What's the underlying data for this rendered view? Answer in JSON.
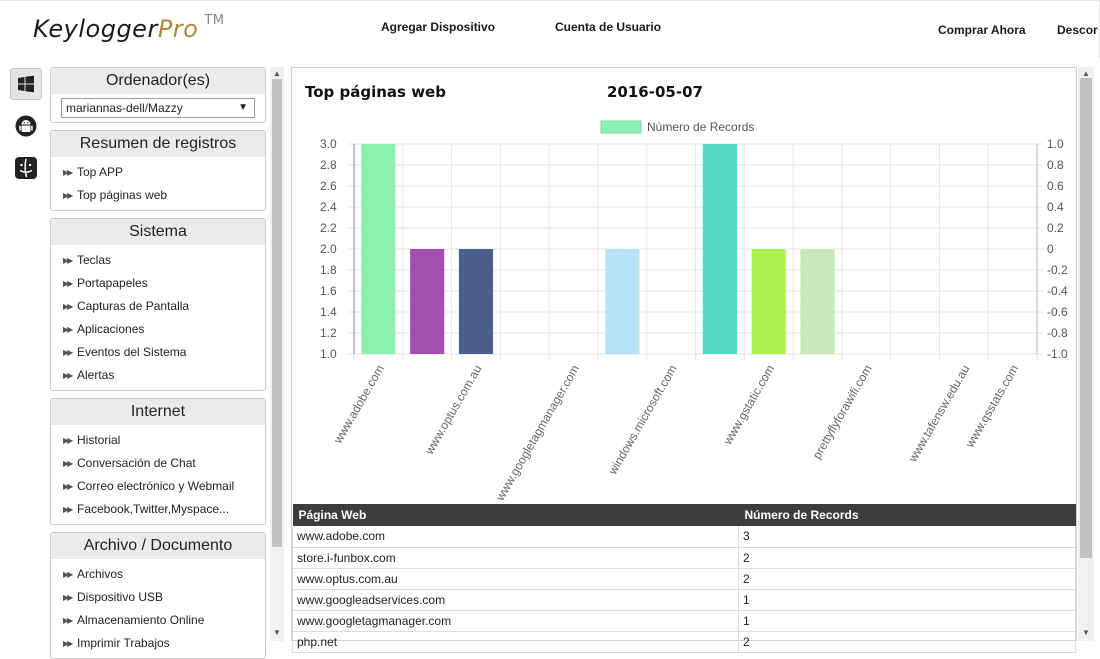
{
  "header": {
    "logo_main": "Keylogger",
    "logo_accent": "Pro",
    "logo_tm": "TM",
    "nav": [
      "Agregar Dispositivo",
      "Cuenta de Usuario",
      "Comprar Ahora",
      "Descor"
    ]
  },
  "rail": [
    "windows-icon",
    "android-icon",
    "mac-icon"
  ],
  "sidebar": {
    "computers_title": "Ordenador(es)",
    "computer_selected": "mariannas-dell/Mazzy",
    "sections": [
      {
        "title": "Resumen de registros",
        "items": [
          "Top APP",
          "Top páginas web"
        ]
      },
      {
        "title": "Sistema",
        "items": [
          "Teclas",
          "Portapapeles",
          "Capturas de Pantalla",
          "Aplicaciones",
          "Eventos del Sistema",
          "Alertas"
        ]
      },
      {
        "title": "Internet",
        "items": [
          "Historial",
          "Conversación de Chat",
          "Correo electrónico y Webmail",
          "Facebook,Twitter,Myspace..."
        ]
      },
      {
        "title": "Archivo / Documento",
        "items": [
          "Archivos",
          "Dispositivo USB",
          "Almacenamiento Online",
          "Imprimir Trabajos"
        ]
      }
    ]
  },
  "main": {
    "title": "Top páginas web",
    "date": "2016-05-07",
    "table": {
      "headers": [
        "Página Web",
        "Número de Records"
      ],
      "rows": [
        [
          "www.adobe.com",
          "3"
        ],
        [
          "store.i-funbox.com",
          "2"
        ],
        [
          "www.optus.com.au",
          "2"
        ],
        [
          "www.googleadservices.com",
          "1"
        ],
        [
          "www.googletagmanager.com",
          "1"
        ],
        [
          "php.net",
          "2"
        ]
      ]
    }
  },
  "chart_data": {
    "type": "bar",
    "legend": "Número de Records",
    "legend_position": "top",
    "grid": true,
    "categories": [
      "www.adobe.com",
      "",
      "www.optus.com.au",
      "",
      "www.googletagmanager.com",
      "",
      "windows.microsoft.com",
      "",
      "www.gstatic.com",
      "",
      "prettyflyforawifi.com",
      "",
      "www.tafensw.edu.au",
      "www.qsstats.com"
    ],
    "values": [
      3,
      2,
      2,
      null,
      null,
      2,
      null,
      3,
      2,
      2,
      null,
      null,
      null,
      null
    ],
    "colors": [
      "#8ef0b0",
      "#a150b0",
      "#4a5f8e",
      null,
      null,
      "#b8e2f7",
      null,
      "#56d8c8",
      "#aaf04f",
      "#c8eab8",
      null,
      null,
      null,
      null
    ],
    "ylim": [
      1,
      3
    ],
    "yticks": [
      "3.0",
      "2.8",
      "2.6",
      "2.4",
      "2.2",
      "2.0",
      "1.8",
      "1.6",
      "1.4",
      "1.2",
      "1.0"
    ],
    "y2ticks": [
      "1.0",
      "0.8",
      "0.6",
      "0.4",
      "0.2",
      "0",
      "-0.2",
      "-0.4",
      "-0.6",
      "-0.8",
      "-1.0"
    ]
  }
}
